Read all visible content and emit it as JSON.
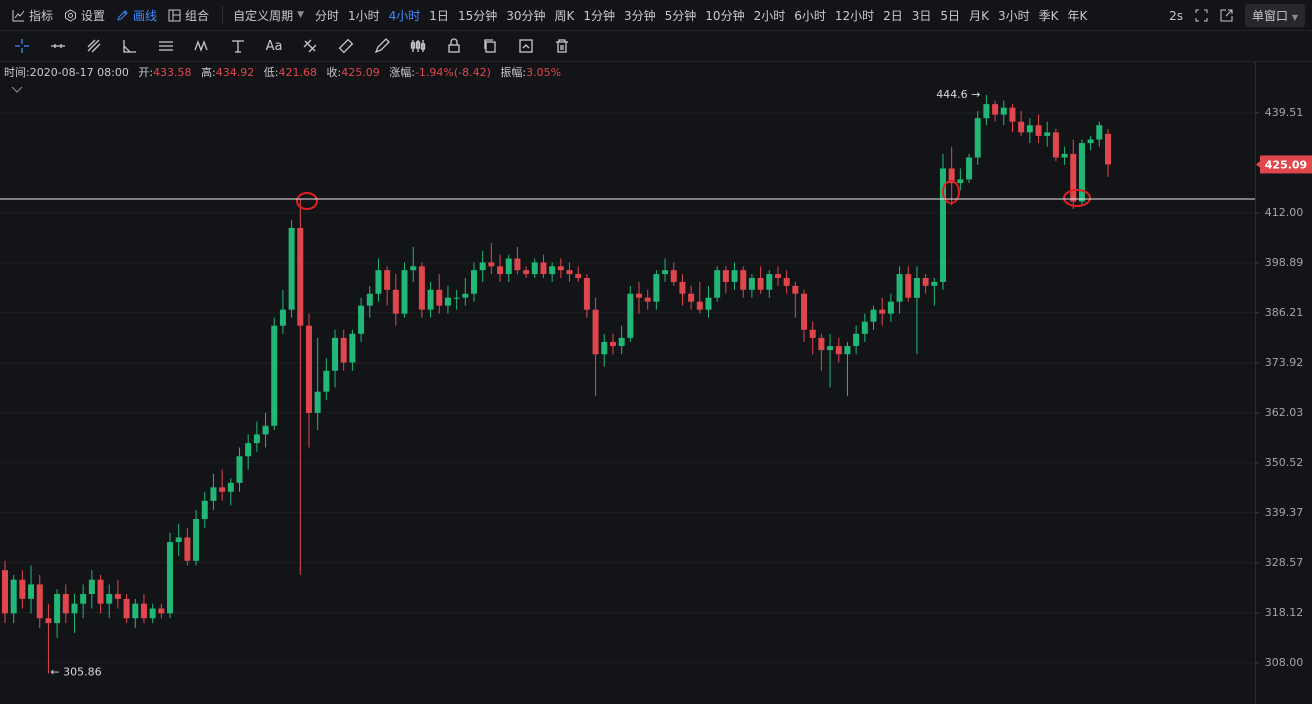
{
  "toolbar": {
    "items": [
      "指标",
      "设置",
      "画线",
      "组合"
    ],
    "active_item_index": 2,
    "custom_period": "自定义周期",
    "intervals": [
      "分时",
      "1小时",
      "4小时",
      "1日",
      "15分钟",
      "30分钟",
      "周K",
      "1分钟",
      "3分钟",
      "5分钟",
      "10分钟",
      "2小时",
      "6小时",
      "12小时",
      "2日",
      "3日",
      "5日",
      "月K",
      "3小时",
      "季K",
      "年K"
    ],
    "active_interval_index": 2,
    "refresh": "2s",
    "window": "单窗口"
  },
  "drawing_tools": {
    "text_tool": "Aa"
  },
  "info": {
    "time_label": "时间:",
    "time": "2020-08-17 08:00",
    "open_label": "开:",
    "high_label": "高:",
    "low_label": "低:",
    "close_label": "收:",
    "change_label": "涨幅:",
    "change": "-1.94%(-8.42)",
    "amplitude_label": "振幅:",
    "amplitude": "3.05%"
  },
  "chart_data": {
    "type": "candlestick",
    "up_color": "#22b776",
    "down_color": "#e0474c",
    "log_scale": true,
    "grid": true,
    "ylim": [
      299.9,
      454.2
    ],
    "yticks": [
      {
        "value": 308,
        "label": "308.00"
      },
      318.12,
      328.57,
      339.37,
      350.52,
      362.03,
      373.92,
      386.21,
      398.89,
      {
        "value": 412,
        "label": "412.00"
      },
      439.51
    ],
    "hline": 415.7,
    "annotations": [
      {
        "label": "444.6 →",
        "value": 444.6,
        "index": 113,
        "side": "left"
      },
      {
        "label": "← 305.86",
        "value": 305.86,
        "index": 5,
        "side": "right"
      }
    ],
    "open": [
      327,
      318,
      325,
      321,
      324,
      317,
      316,
      322,
      318,
      320,
      322,
      325,
      320,
      322,
      321,
      317,
      320,
      317,
      319,
      318,
      333,
      334,
      329,
      338,
      342,
      345,
      344,
      346,
      352,
      355,
      357,
      359,
      383,
      387,
      408,
      383,
      362,
      367,
      372,
      380,
      374,
      381,
      388,
      391,
      397,
      392,
      386,
      397,
      398,
      387,
      392,
      388,
      390,
      390,
      391,
      397,
      399,
      398,
      396,
      400,
      397,
      396,
      399,
      396,
      398,
      397,
      396,
      395,
      387,
      376,
      379,
      378,
      380,
      391,
      390,
      389,
      396,
      397,
      394,
      391,
      389,
      387,
      390,
      397,
      394,
      397,
      392,
      395,
      392,
      396,
      395,
      393,
      391,
      382,
      380,
      377,
      378,
      376,
      378,
      381,
      384,
      387,
      386,
      389,
      396,
      390,
      395,
      393,
      394,
      424,
      420,
      421,
      427,
      438,
      442,
      439,
      441,
      437,
      434,
      436,
      433,
      434,
      427,
      428,
      415,
      431,
      432,
      433.58
    ],
    "high": [
      329,
      326,
      327,
      328,
      326,
      320,
      323,
      324,
      322,
      324,
      327,
      326,
      324,
      325,
      322,
      321,
      322,
      320,
      320,
      335,
      337,
      336,
      340,
      344,
      348,
      349,
      347,
      354,
      357,
      360,
      362,
      385,
      392,
      410,
      415.7,
      386,
      380,
      375,
      382,
      382,
      382,
      390,
      393,
      400,
      398,
      396,
      399,
      403,
      399,
      394,
      396,
      393,
      392,
      395,
      399,
      402,
      404,
      401,
      401,
      403,
      398,
      400,
      401,
      399,
      400,
      399,
      398,
      396,
      390,
      381,
      381,
      383,
      393,
      394,
      392,
      397,
      400,
      399,
      396,
      393,
      394,
      393,
      398,
      398,
      399,
      398,
      396,
      398,
      397,
      398,
      397,
      394,
      392,
      384,
      381,
      381,
      380,
      379,
      383,
      386,
      388,
      390,
      391,
      398,
      398,
      398,
      396,
      395,
      428,
      430,
      424,
      428,
      440,
      444.6,
      443,
      443,
      442,
      440,
      438,
      439,
      437,
      435,
      430,
      432,
      432,
      433,
      437,
      434.92
    ],
    "low": [
      316,
      316,
      319,
      318,
      315,
      305.86,
      313,
      316,
      314,
      317,
      319,
      318,
      317,
      319,
      316,
      315,
      316,
      316,
      317,
      317,
      330,
      328,
      328,
      336,
      340,
      342,
      341,
      344,
      349,
      353,
      354,
      358,
      381,
      385,
      326,
      354,
      358,
      365,
      368,
      372,
      372,
      379,
      385,
      389,
      388,
      383,
      385,
      394,
      385,
      385,
      386,
      386,
      387,
      388,
      389,
      394,
      396,
      394,
      394,
      396,
      395,
      395,
      395,
      394,
      395,
      394,
      394,
      385,
      366,
      373,
      376,
      376,
      379,
      386,
      387,
      387,
      394,
      393,
      388,
      387,
      386,
      385,
      389,
      391,
      392,
      390,
      390,
      391,
      390,
      393,
      391,
      385,
      379,
      376,
      372,
      368,
      374,
      366,
      376,
      379,
      382,
      383,
      384,
      386,
      389,
      376,
      391,
      388,
      392,
      414,
      418,
      420,
      425,
      436,
      437,
      436,
      434,
      433,
      431,
      431,
      430,
      426,
      425,
      413,
      414,
      429,
      430,
      421.68
    ],
    "close": [
      318,
      325,
      321,
      324,
      317,
      316,
      322,
      318,
      320,
      322,
      325,
      320,
      322,
      321,
      317,
      320,
      317,
      319,
      318,
      333,
      334,
      329,
      338,
      342,
      345,
      344,
      346,
      352,
      355,
      357,
      359,
      383,
      387,
      408,
      383,
      362,
      367,
      372,
      380,
      374,
      381,
      388,
      391,
      397,
      392,
      386,
      397,
      398,
      387,
      392,
      388,
      390,
      390,
      391,
      397,
      399,
      398,
      396,
      400,
      397,
      396,
      399,
      396,
      398,
      397,
      396,
      395,
      387,
      376,
      379,
      378,
      380,
      391,
      390,
      389,
      396,
      397,
      394,
      391,
      389,
      387,
      390,
      397,
      394,
      397,
      392,
      395,
      392,
      396,
      395,
      393,
      391,
      382,
      380,
      377,
      378,
      376,
      378,
      381,
      384,
      387,
      386,
      389,
      396,
      390,
      395,
      393,
      394,
      424,
      420,
      421,
      427,
      438,
      442,
      439,
      441,
      437,
      434,
      436,
      433,
      434,
      427,
      428,
      415,
      431,
      432,
      436,
      425.09
    ]
  }
}
